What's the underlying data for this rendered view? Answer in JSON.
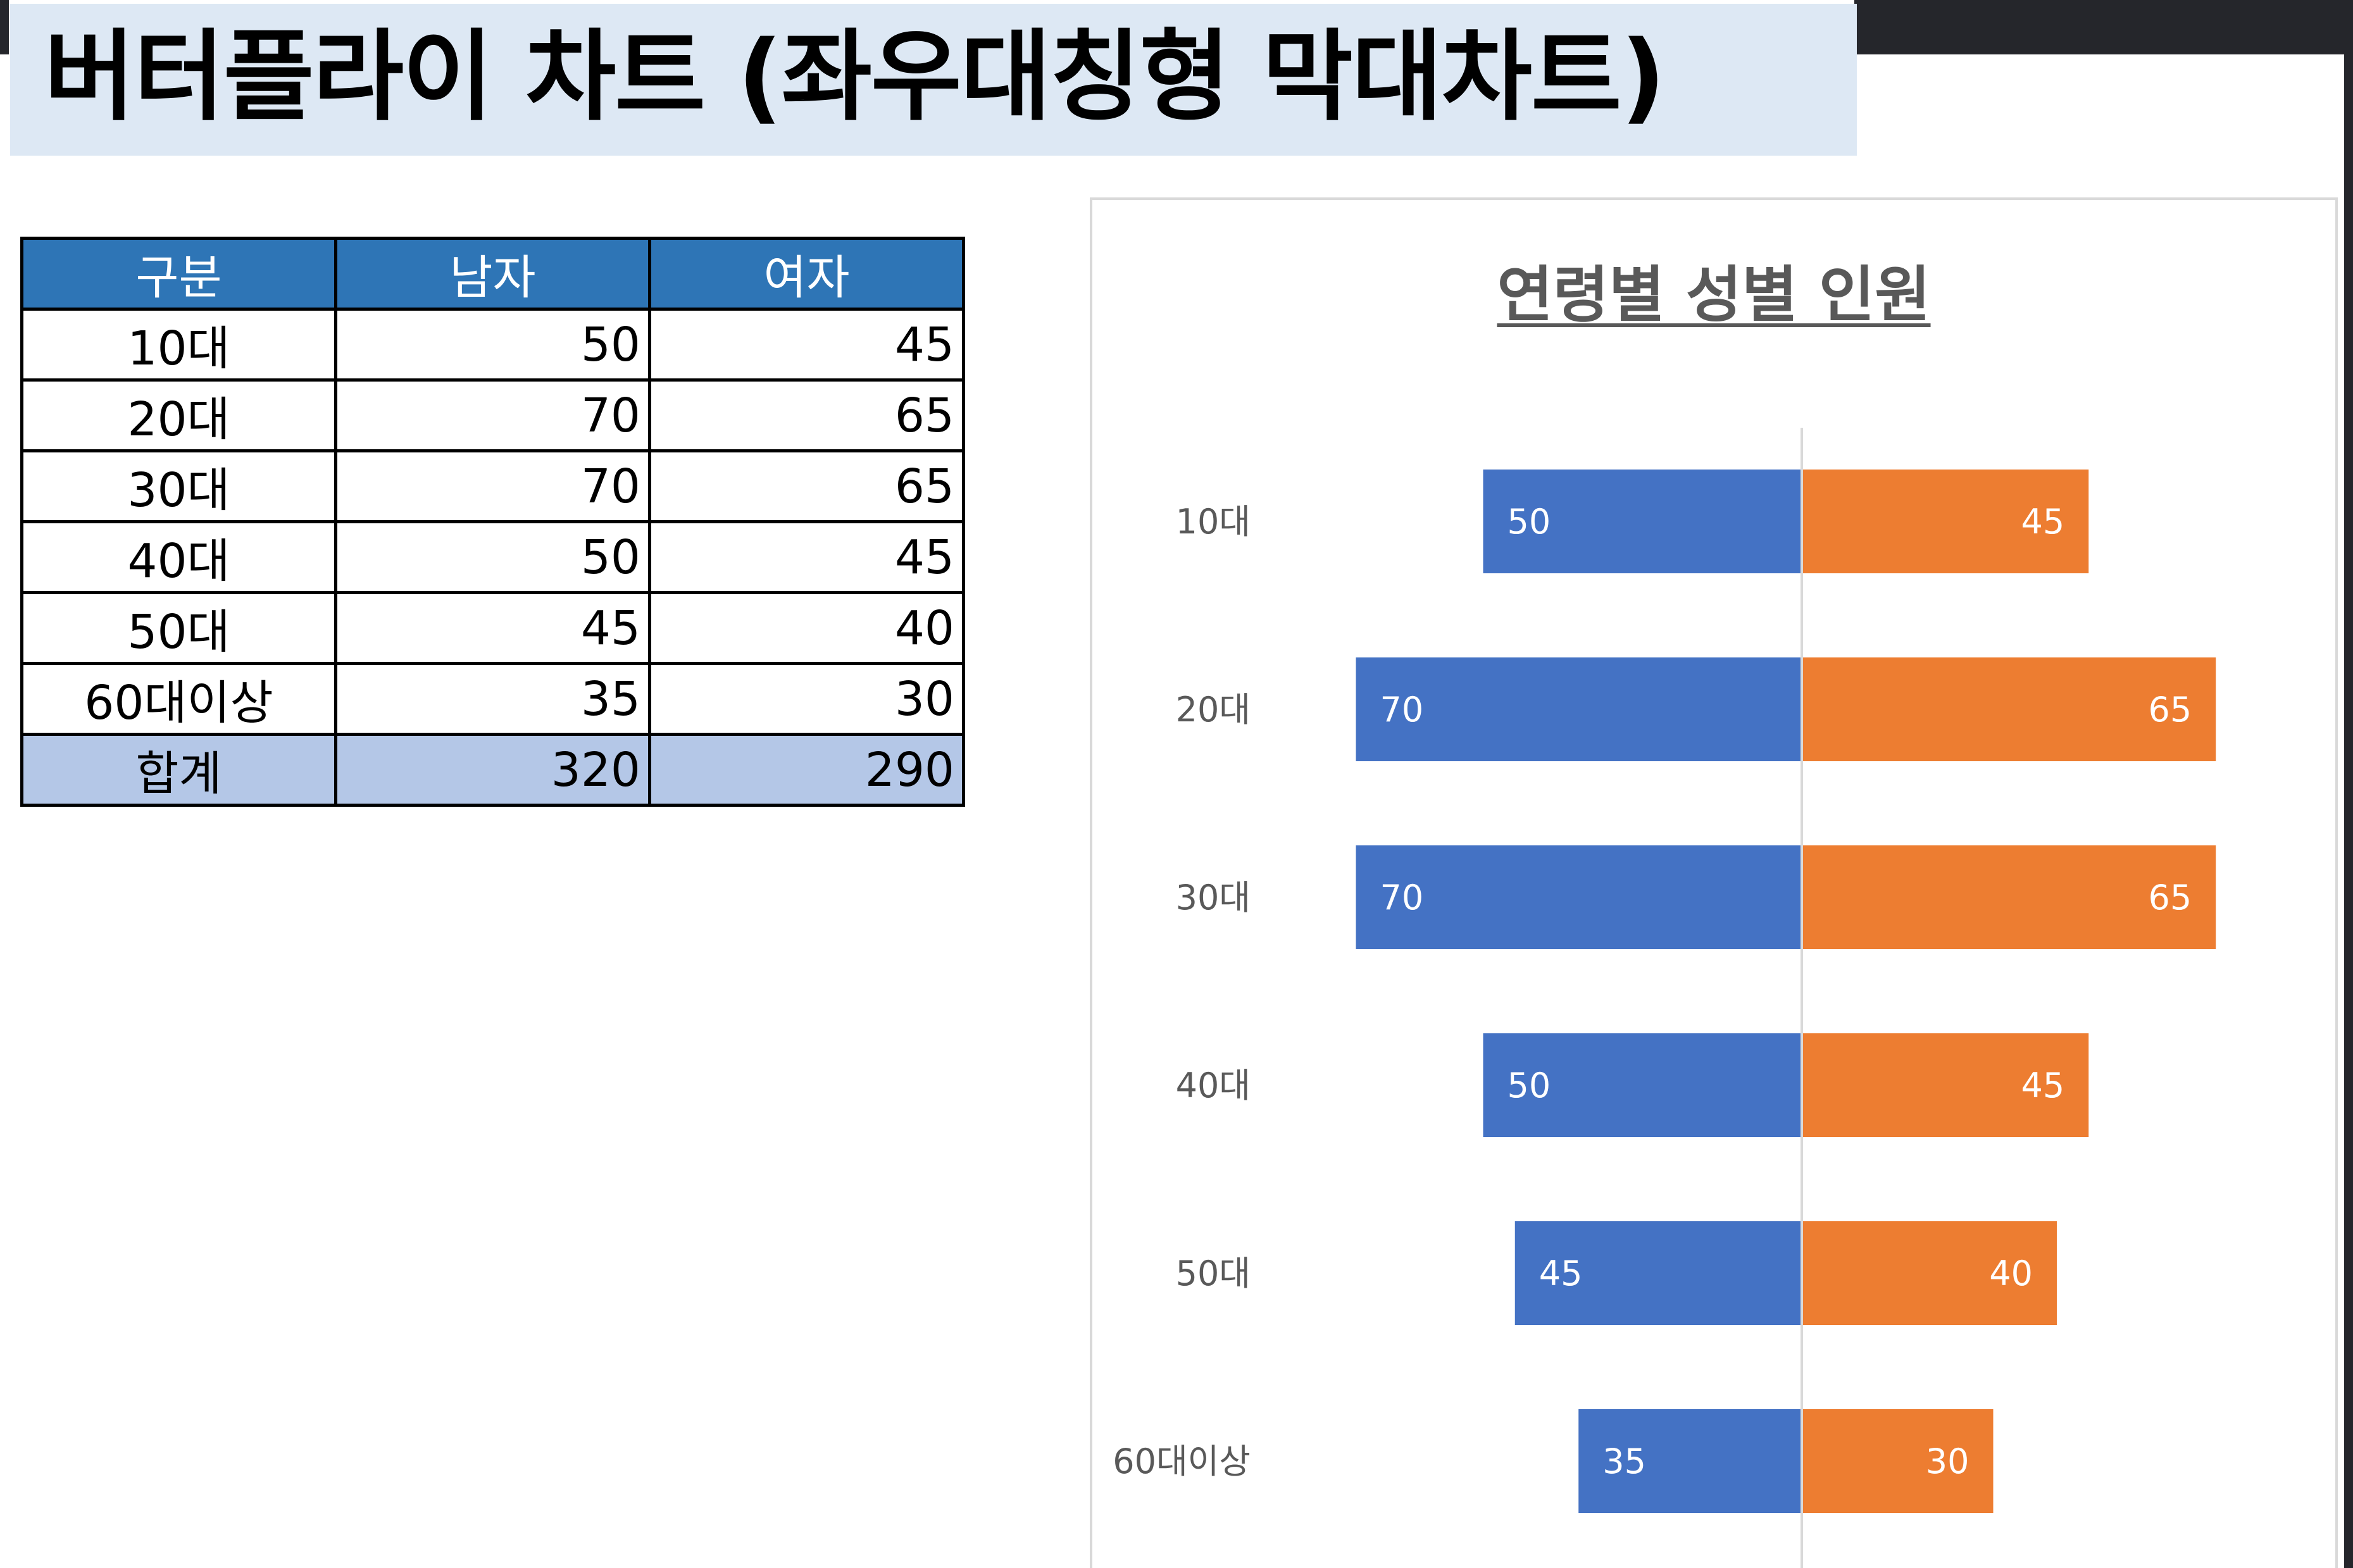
{
  "header": {
    "title": "버터플라이 차트 (좌우대칭형 막대차트)"
  },
  "table": {
    "headers": [
      "구분",
      "남자",
      "여자"
    ],
    "rows": [
      [
        "10대",
        "50",
        "45"
      ],
      [
        "20대",
        "70",
        "65"
      ],
      [
        "30대",
        "70",
        "65"
      ],
      [
        "40대",
        "50",
        "45"
      ],
      [
        "50대",
        "45",
        "40"
      ],
      [
        "60대이상",
        "35",
        "30"
      ]
    ],
    "total": [
      "합계",
      "320",
      "290"
    ]
  },
  "chart_data": {
    "type": "bar",
    "orientation": "horizontal-butterfly",
    "title": "연령별 성별 인원",
    "categories": [
      "10대",
      "20대",
      "30대",
      "40대",
      "50대",
      "60대이상"
    ],
    "series": [
      {
        "values": [
          50,
          70,
          70,
          50,
          45,
          35
        ],
        "color": "#4472c4",
        "side": "left"
      },
      {
        "values": [
          45,
          65,
          65,
          45,
          40,
          30
        ],
        "color": "#ed7d31",
        "side": "right"
      }
    ],
    "data_labels": true,
    "legend": "none",
    "grid": false
  }
}
